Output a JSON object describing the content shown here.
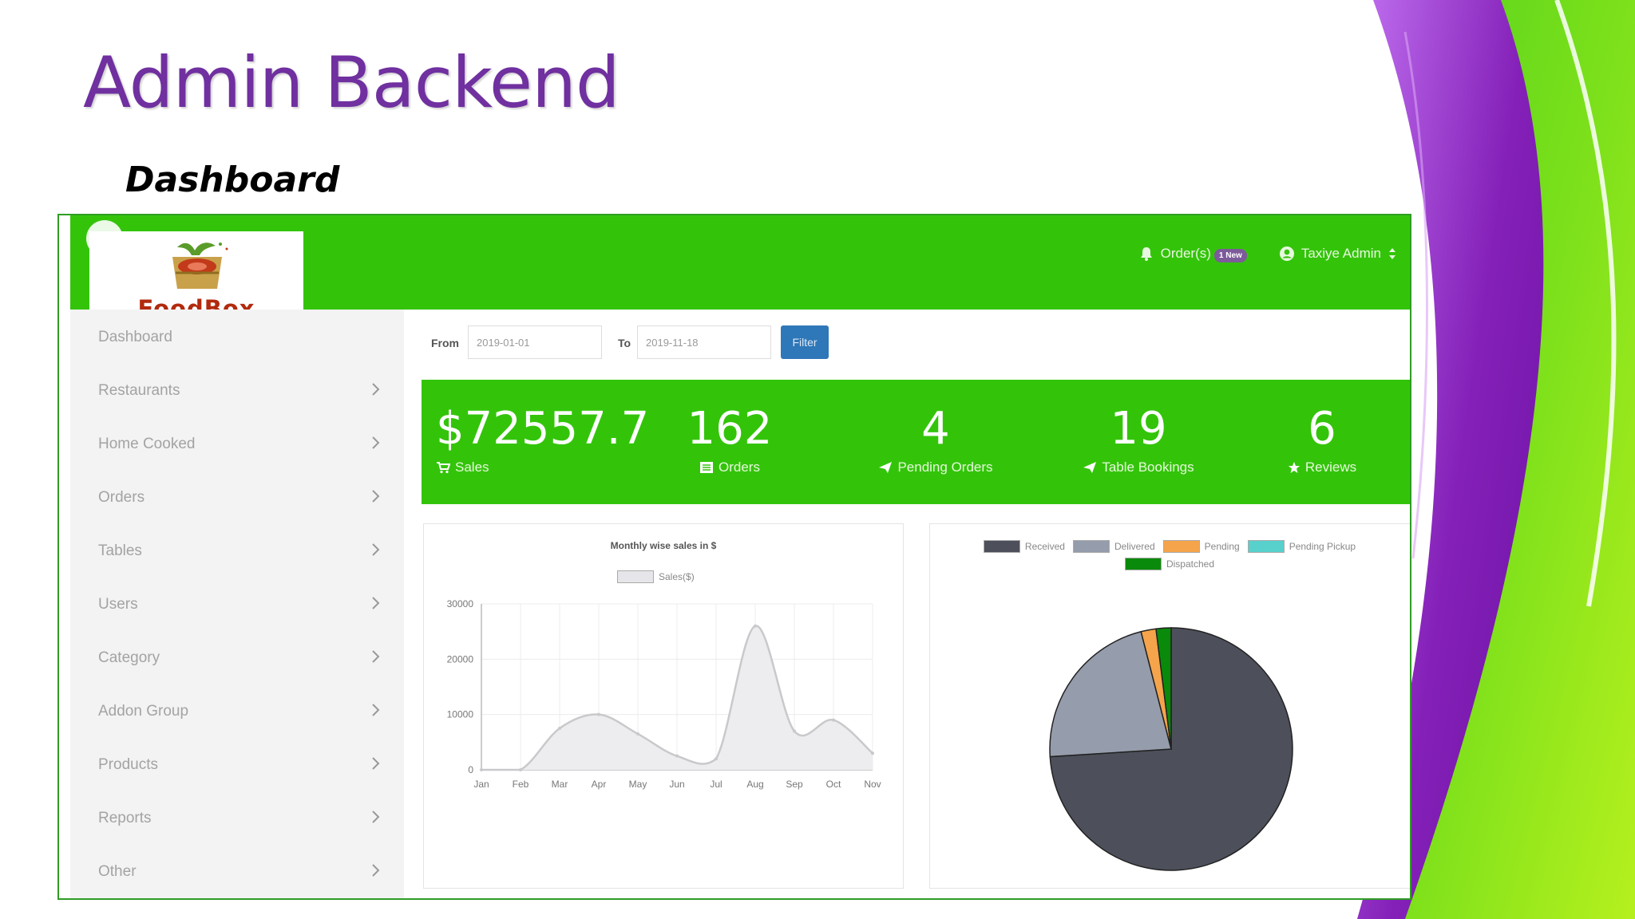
{
  "slide": {
    "title": "Admin Backend",
    "subtitle": "Dashboard"
  },
  "colors": {
    "title": "#7030a0",
    "brand_green": "#33c40a",
    "filter_button": "#2e77b8",
    "logo_text": "#b22a0e"
  },
  "header": {
    "logo_text": "FoodBox",
    "orders_label": "Order(s)",
    "orders_badge": "1 New",
    "orders_icon": "bell-icon",
    "user_label": "Taxiye Admin",
    "user_icon": "user-circle-icon"
  },
  "sidebar": {
    "items": [
      {
        "label": "Dashboard",
        "has_chevron": false
      },
      {
        "label": "Restaurants",
        "has_chevron": true
      },
      {
        "label": "Home Cooked",
        "has_chevron": true
      },
      {
        "label": "Orders",
        "has_chevron": true
      },
      {
        "label": "Tables",
        "has_chevron": true
      },
      {
        "label": "Users",
        "has_chevron": true
      },
      {
        "label": "Category",
        "has_chevron": true
      },
      {
        "label": "Addon Group",
        "has_chevron": true
      },
      {
        "label": "Products",
        "has_chevron": true
      },
      {
        "label": "Reports",
        "has_chevron": true
      },
      {
        "label": "Other",
        "has_chevron": true
      }
    ]
  },
  "filter": {
    "from_label": "From",
    "from_value": "2019-01-01",
    "to_label": "To",
    "to_value": "2019-11-18",
    "button_label": "Filter"
  },
  "stats": [
    {
      "value": "$72557.7",
      "label": "Sales",
      "icon": "cart-icon"
    },
    {
      "value": "162",
      "label": "Orders",
      "icon": "list-icon"
    },
    {
      "value": "4",
      "label": "Pending Orders",
      "icon": "paper-plane-icon"
    },
    {
      "value": "19",
      "label": "Table Bookings",
      "icon": "paper-plane-icon"
    },
    {
      "value": "6",
      "label": "Reviews",
      "icon": "star-icon"
    }
  ],
  "chart_data": [
    {
      "type": "line",
      "title": "Monthly wise sales in $",
      "series": [
        {
          "name": "Sales($)",
          "values": [
            0,
            0,
            7500,
            10000,
            6500,
            2500,
            2000,
            26000,
            7000,
            9000,
            3000
          ]
        }
      ],
      "categories": [
        "Jan",
        "Feb",
        "Mar",
        "Apr",
        "May",
        "Jun",
        "Jul",
        "Aug",
        "Sep",
        "Oct",
        "Nov"
      ],
      "yticks": [
        "0",
        "10000",
        "20000",
        "30000"
      ],
      "ylim": [
        0,
        30000
      ],
      "grid": true,
      "legend": "top",
      "fill": true
    },
    {
      "type": "pie",
      "labels": [
        "Received",
        "Delivered",
        "Pending",
        "Pending Pickup",
        "Dispatched"
      ],
      "values": [
        74,
        22,
        2,
        0,
        2
      ],
      "colors": [
        "#4d505b",
        "#959cab",
        "#f5a44b",
        "#58d0cc",
        "#0a8a0a"
      ],
      "legend": "top"
    }
  ]
}
